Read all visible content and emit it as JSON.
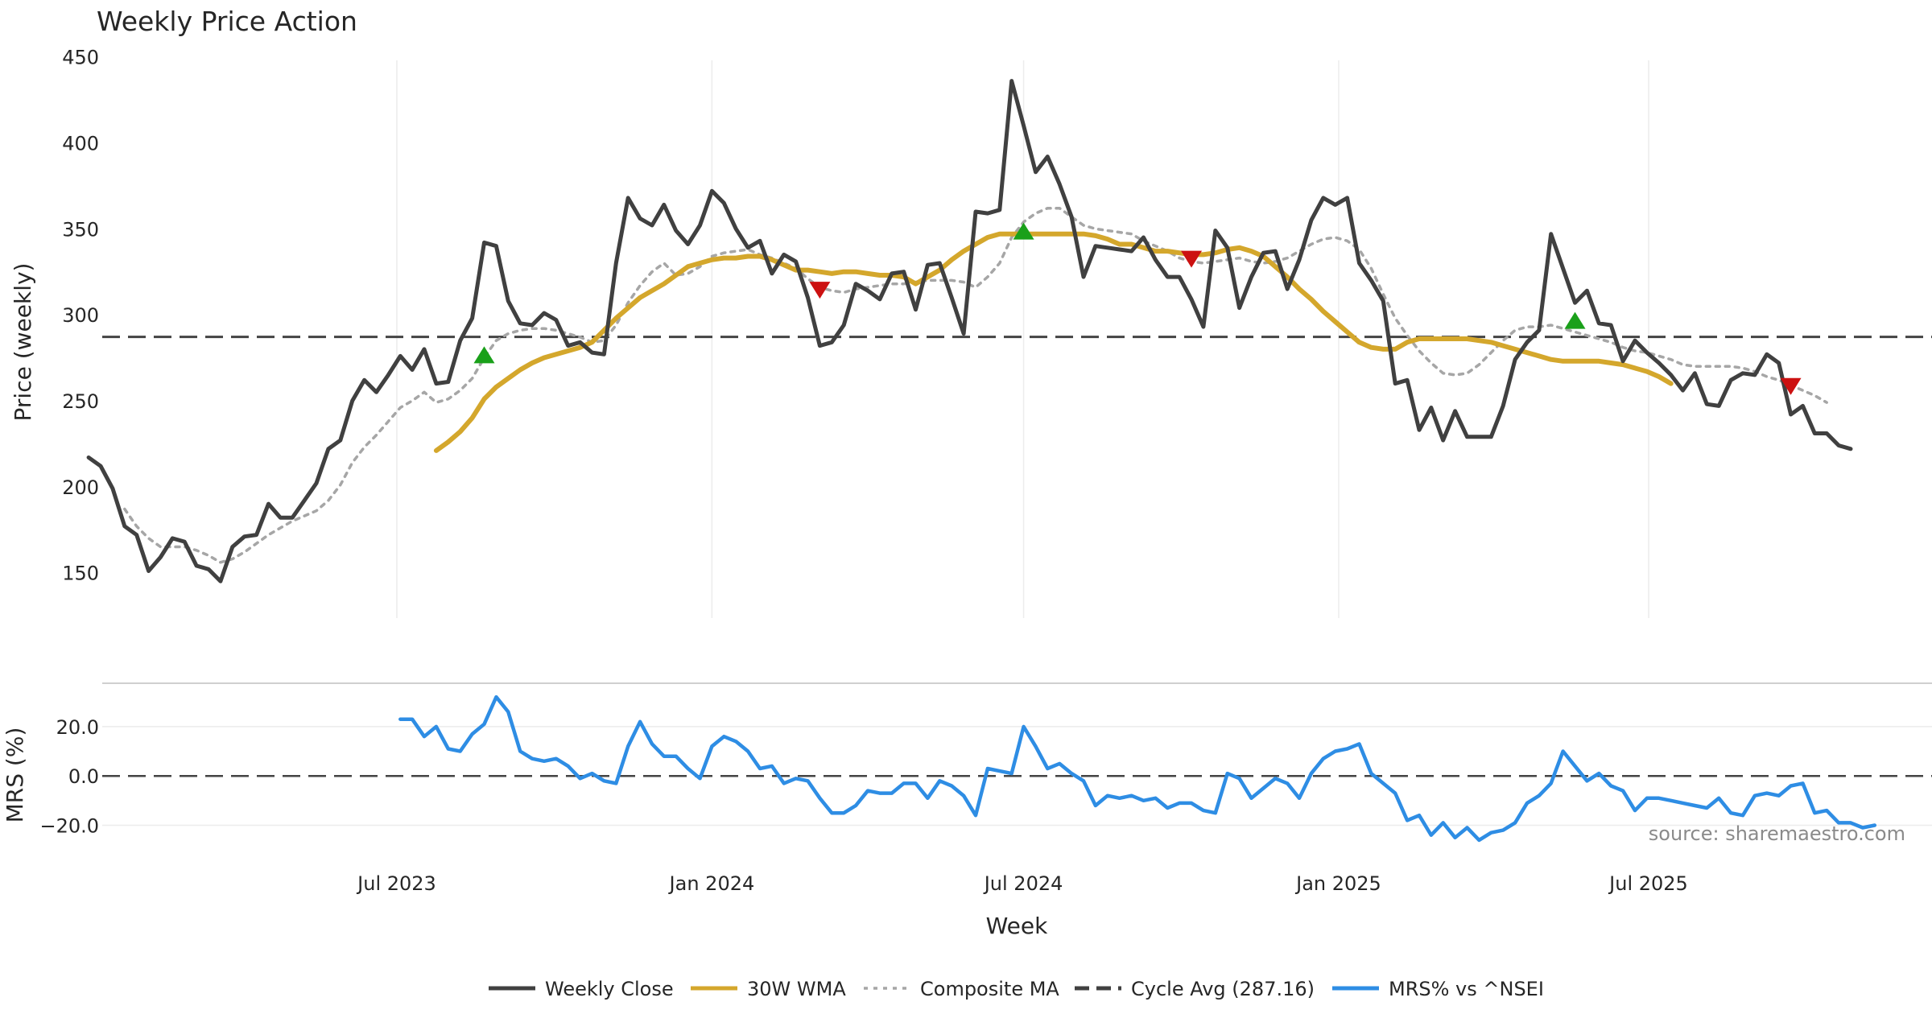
{
  "chart_data": {
    "type": "line",
    "title": "Weekly Price Action",
    "source": "source: sharemaestro.com",
    "xlabel": "Week",
    "x_ticks": [
      "Jul 2023",
      "Jan 2024",
      "Jul 2024",
      "Jan 2025",
      "Jul 2025"
    ],
    "x_tick_dates": [
      "2023-07-01",
      "2024-01-01",
      "2024-07-01",
      "2025-01-01",
      "2025-07-01"
    ],
    "x_range": [
      "2023-01-02",
      "2025-11-24"
    ],
    "x_start": "2023-01-02",
    "x_step_days": 7,
    "grid": "vertical",
    "legend": "bottom-center",
    "price_panel": {
      "ylabel": "Price (weekly)",
      "ylim": [
        125,
        455
      ],
      "y_ticks": [
        150,
        200,
        250,
        300,
        350,
        400,
        450
      ],
      "cycle_avg": 287.16,
      "series": [
        {
          "name": "Weekly Close",
          "color": "#404040",
          "style": "solid",
          "values": [
            217,
            212,
            199,
            177,
            172,
            151,
            159,
            170,
            168,
            154,
            152,
            145,
            165,
            171,
            172,
            190,
            182,
            182,
            192,
            202,
            222,
            227,
            250,
            262,
            255,
            265,
            276,
            268,
            280,
            260,
            261,
            285,
            298,
            342,
            340,
            308,
            295,
            294,
            301,
            297,
            282,
            284,
            278,
            277,
            330,
            368,
            356,
            352,
            364,
            349,
            341,
            352,
            372,
            365,
            350,
            339,
            343,
            324,
            335,
            331,
            310,
            282,
            284,
            294,
            318,
            314,
            309,
            324,
            325,
            303,
            329,
            330,
            310,
            289,
            360,
            359,
            361,
            436,
            410,
            383,
            392,
            376,
            357,
            322,
            340,
            339,
            338,
            337,
            345,
            332,
            322,
            322,
            309,
            293,
            349,
            339,
            304,
            322,
            336,
            337,
            315,
            332,
            355,
            368,
            364,
            368,
            330,
            320,
            308,
            260,
            262,
            233,
            246,
            227,
            244,
            229,
            229,
            229,
            247,
            274,
            284,
            291,
            347,
            327,
            307,
            314,
            295,
            294,
            273,
            285,
            278,
            272,
            265,
            256,
            266,
            248,
            247,
            262,
            266,
            265,
            277,
            272,
            242,
            247,
            231,
            231,
            224,
            222
          ]
        },
        {
          "name": "30W WMA",
          "color": "#d4a72c",
          "style": "solid",
          "start_index": 29,
          "values": [
            221,
            226,
            232,
            240,
            251,
            258,
            263,
            268,
            272,
            275,
            277,
            279,
            281,
            284,
            291,
            298,
            304,
            310,
            314,
            318,
            323,
            328,
            330,
            332,
            333,
            333,
            334,
            334,
            332,
            329,
            326,
            326,
            325,
            324,
            325,
            325,
            324,
            323,
            323,
            322,
            318,
            322,
            326,
            332,
            337,
            341,
            345,
            347,
            347,
            347,
            347,
            347,
            347,
            347,
            347,
            346,
            344,
            341,
            341,
            339,
            337,
            337,
            336,
            335,
            335,
            336,
            338,
            339,
            337,
            334,
            328,
            322,
            315,
            309,
            302,
            296,
            290,
            284,
            281,
            280,
            280,
            284,
            286,
            286,
            286,
            286,
            286,
            285,
            284,
            282,
            280,
            278,
            276,
            274,
            273,
            273,
            273,
            273,
            272,
            271,
            269,
            267,
            264,
            260
          ]
        },
        {
          "name": "Composite MA",
          "color": "#a6a6a6",
          "style": "dotted",
          "start_index": 3,
          "values": [
            187,
            177,
            170,
            165,
            165,
            165,
            163,
            160,
            156,
            158,
            162,
            167,
            172,
            176,
            180,
            183,
            186,
            192,
            201,
            214,
            223,
            230,
            238,
            246,
            250,
            255,
            249,
            251,
            256,
            263,
            275,
            285,
            289,
            291,
            292,
            292,
            291,
            289,
            287,
            284,
            285,
            294,
            307,
            317,
            325,
            330,
            323,
            324,
            328,
            334,
            336,
            337,
            338,
            335,
            333,
            330,
            327,
            321,
            316,
            314,
            313,
            315,
            316,
            317,
            318,
            318,
            319,
            320,
            320,
            320,
            319,
            316,
            322,
            330,
            345,
            354,
            359,
            362,
            362,
            357,
            352,
            350,
            349,
            348,
            347,
            343,
            340,
            337,
            333,
            331,
            330,
            331,
            332,
            333,
            331,
            330,
            331,
            333,
            337,
            341,
            344,
            345,
            343,
            338,
            327,
            312,
            298,
            288,
            279,
            272,
            266,
            265,
            266,
            271,
            278,
            285,
            291,
            293,
            293,
            294,
            292,
            290,
            288,
            286,
            284,
            281,
            279,
            278,
            276,
            274,
            271,
            270,
            270,
            270,
            270,
            269,
            267,
            264,
            262,
            259,
            256,
            253,
            249
          ]
        }
      ],
      "signals_up": [
        {
          "index": 33,
          "value": 276
        },
        {
          "index": 78,
          "value": 348
        },
        {
          "index": 124,
          "value": 296
        }
      ],
      "signals_down": [
        {
          "index": 61,
          "value": 315
        },
        {
          "index": 92,
          "value": 333
        },
        {
          "index": 142,
          "value": 259
        }
      ]
    },
    "mrs_panel": {
      "ylabel": "MRS (%)",
      "ylim": [
        -28,
        34
      ],
      "y_ticks": [
        20,
        0,
        -20
      ],
      "y_tick_labels": [
        "20.0",
        "0.0",
        "−20.0"
      ],
      "series": [
        {
          "name": "MRS% vs ^NSEI",
          "color": "#2e8de4",
          "style": "solid",
          "start_index": 26,
          "values": [
            23,
            23,
            16,
            20,
            11,
            10,
            17,
            21,
            32,
            26,
            10,
            7,
            6,
            7,
            4,
            -1,
            1,
            -2,
            -3,
            12,
            22,
            13,
            8,
            8,
            3,
            -1,
            12,
            16,
            14,
            10,
            3,
            4,
            -3,
            -1,
            -2,
            -9,
            -15,
            -15,
            -12,
            -6,
            -7,
            -7,
            -3,
            -3,
            -9,
            -2,
            -4,
            -8,
            -16,
            3,
            2,
            1,
            20,
            12,
            3,
            5,
            1,
            -2,
            -12,
            -8,
            -9,
            -8,
            -10,
            -9,
            -13,
            -11,
            -11,
            -14,
            -15,
            1,
            -1,
            -9,
            -5,
            -1,
            -3,
            -9,
            1,
            7,
            10,
            11,
            13,
            1,
            -3,
            -7,
            -18,
            -16,
            -24,
            -19,
            -25,
            -21,
            -26,
            -23,
            -22,
            -19,
            -11,
            -8,
            -3,
            10,
            4,
            -2,
            1,
            -4,
            -6,
            -14,
            -9,
            -9,
            -10,
            -11,
            -12,
            -13,
            -9,
            -15,
            -16,
            -8,
            -7,
            -8,
            -4,
            -3,
            -15,
            -14,
            -19,
            -19,
            -21,
            -20
          ]
        }
      ]
    },
    "legend_entries": [
      {
        "name": "Weekly Close",
        "color": "#404040",
        "style": "solid"
      },
      {
        "name": "30W WMA",
        "color": "#d4a72c",
        "style": "solid"
      },
      {
        "name": "Composite MA",
        "color": "#a6a6a6",
        "style": "dotted"
      },
      {
        "name": "Cycle Avg (287.16)",
        "color": "#404040",
        "style": "dashed"
      },
      {
        "name": "MRS% vs ^NSEI",
        "color": "#2e8de4",
        "style": "solid"
      }
    ]
  }
}
